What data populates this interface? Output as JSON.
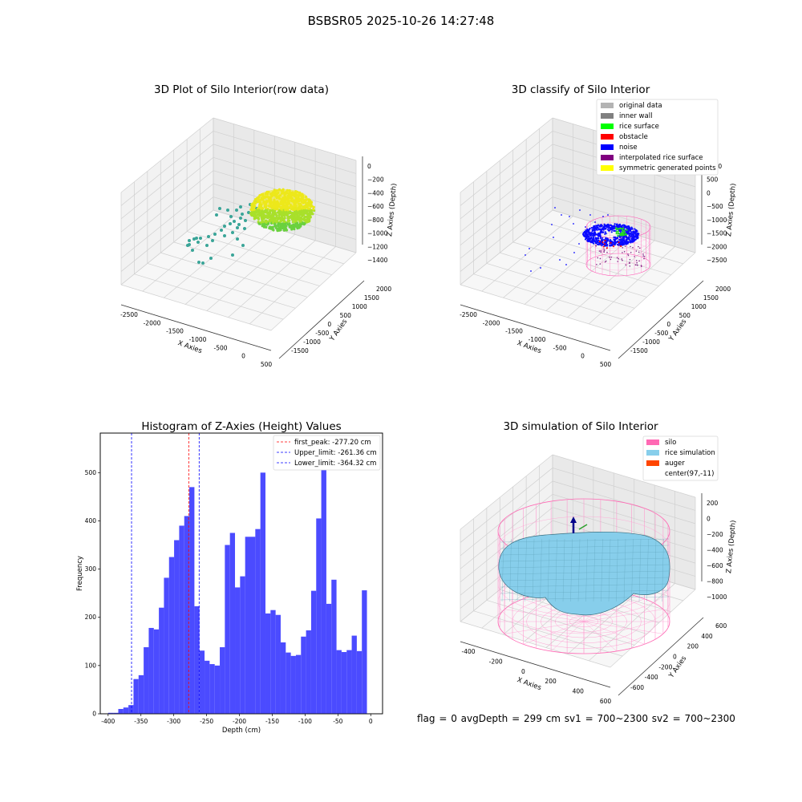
{
  "suptitle": "BSBSR05 2025-10-26 14:27:48",
  "footer": "flag = 0    avgDepth = 299 cm  sv1 = 700~2300  sv2 = 700~2300",
  "chart_data": [
    {
      "type": "scatter",
      "title": "3D Plot of Silo Interior(row data)",
      "xlabel": "X Axies",
      "ylabel": "Y Axies",
      "zlabel": "Z Axies (Depth)",
      "xticks": [
        "-2500",
        "-2000",
        "-1500",
        "-1000",
        "-500",
        "0",
        "500"
      ],
      "yticks": [
        "-1500",
        "-1000",
        "-500",
        "0",
        "500",
        "1000",
        "1500",
        "2000"
      ],
      "zticks": [
        "0",
        "−200",
        "−400",
        "−600",
        "−800",
        "−1000",
        "−1200",
        "−1400"
      ]
    },
    {
      "type": "scatter",
      "title": "3D classify of Silo Interior",
      "xlabel": "X Axies",
      "ylabel": "Y Axies",
      "zlabel": "Z Axies (Depth)",
      "xticks": [
        "-2500",
        "-2000",
        "-1500",
        "-1000",
        "-500",
        "0",
        "500"
      ],
      "yticks": [
        "-1500",
        "-1000",
        "-500",
        "0",
        "500",
        "1000",
        "1500",
        "2000"
      ],
      "zticks": [
        "1000",
        "500",
        "0",
        "−500",
        "−1000",
        "−1500",
        "−2000",
        "−2500"
      ],
      "legend": [
        {
          "label": "original data",
          "color": "#b3b3b3"
        },
        {
          "label": "inner wall",
          "color": "#808080"
        },
        {
          "label": "rice surface",
          "color": "#00ff00"
        },
        {
          "label": "obstacle",
          "color": "#ff0000"
        },
        {
          "label": "noise",
          "color": "#0000ff"
        },
        {
          "label": "interpolated rice surface",
          "color": "#800080"
        },
        {
          "label": "symmetric generated points",
          "color": "#ffff00"
        }
      ],
      "legend_loc": "upper right"
    },
    {
      "type": "bar",
      "title": "Histogram of Z-Axies (Height) Values",
      "xlabel": "Depth (cm)",
      "ylabel": "Frequency",
      "xlim": [
        -412,
        18
      ],
      "ylim": [
        0,
        582
      ],
      "xticks": [
        -400,
        -350,
        -300,
        -250,
        -200,
        -150,
        -100,
        -50,
        0
      ],
      "yticks": [
        0,
        100,
        200,
        300,
        400,
        500
      ],
      "bar_color": "#4b4bff",
      "bin_start": -400,
      "bin_width": 7.73,
      "values": [
        2,
        2,
        10,
        13,
        18,
        72,
        80,
        138,
        178,
        175,
        220,
        282,
        325,
        360,
        390,
        410,
        470,
        223,
        131,
        110,
        103,
        100,
        138,
        350,
        375,
        262,
        285,
        367,
        367,
        383,
        500,
        208,
        215,
        205,
        148,
        127,
        120,
        122,
        160,
        173,
        255,
        405,
        555,
        228,
        278,
        132,
        128,
        132,
        162,
        130,
        256
      ],
      "vlines": [
        {
          "label": "first_peak: -277.20 cm",
          "x": -277.2,
          "color": "#ff0000"
        },
        {
          "label": "Upper_limit: -261.36 cm",
          "x": -261.36,
          "color": "#0000ff"
        },
        {
          "label": "Lower_limit: -364.32 cm",
          "x": -364.32,
          "color": "#0000ff"
        }
      ],
      "legend_loc": "upper right"
    },
    {
      "type": "area",
      "title": "3D simulation of Silo Interior",
      "xlabel": "X Axies",
      "ylabel": "Y Axies",
      "zlabel": "Z Axies (Depth)",
      "xticks": [
        "-400",
        "-200",
        "0",
        "200",
        "400",
        "600"
      ],
      "yticks": [
        "-600",
        "-400",
        "-200",
        "0",
        "200",
        "400",
        "600"
      ],
      "zticks": [
        "200",
        "0",
        "−200",
        "−400",
        "−600",
        "−800",
        "−1000"
      ],
      "legend": [
        {
          "label": "silo",
          "color": "#ff69b4"
        },
        {
          "label": "rice simulation",
          "color": "#87ceeb"
        },
        {
          "label": "auger",
          "color": "#ff4500"
        },
        {
          "label": "center(97,-11)",
          "color": "none"
        }
      ],
      "legend_loc": "upper right"
    }
  ]
}
